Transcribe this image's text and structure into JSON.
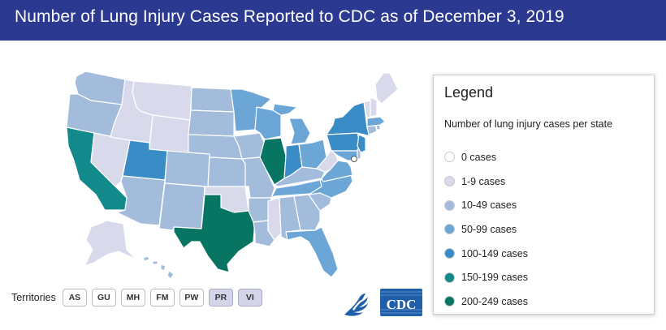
{
  "header": {
    "title": "Number of Lung Injury Cases Reported to CDC as of December 3, 2019"
  },
  "colors": {
    "header_bg": "#2b3990",
    "c0": "#ffffff",
    "c1": "#d9d9ec",
    "c2": "#a4bcdc",
    "c3": "#6ba6d6",
    "c4": "#3a8cc6",
    "c5": "#12898a",
    "c6": "#077562",
    "cdc_blue": "#1f5faa"
  },
  "legend": {
    "title": "Legend",
    "subtitle": "Number of lung injury cases per state",
    "items": [
      {
        "label": "0 cases",
        "color": "#ffffff"
      },
      {
        "label": "1-9 cases",
        "color": "#d9d9ec"
      },
      {
        "label": "10-49 cases",
        "color": "#a4bcdc"
      },
      {
        "label": "50-99 cases",
        "color": "#6ba6d6"
      },
      {
        "label": "100-149 cases",
        "color": "#3a8cc6"
      },
      {
        "label": "150-199 cases",
        "color": "#12898a"
      },
      {
        "label": "200-249 cases",
        "color": "#077562"
      }
    ]
  },
  "territories": {
    "label": "Territories",
    "items": [
      {
        "code": "AS",
        "range": "0 cases"
      },
      {
        "code": "GU",
        "range": "0 cases"
      },
      {
        "code": "MH",
        "range": "0 cases"
      },
      {
        "code": "FM",
        "range": "0 cases"
      },
      {
        "code": "PW",
        "range": "0 cases"
      },
      {
        "code": "PR",
        "range": "1-9 cases"
      },
      {
        "code": "VI",
        "range": "1-9 cases"
      }
    ]
  },
  "logos": {
    "hhs": "hhs-eagle-icon",
    "cdc": "CDC"
  }
}
